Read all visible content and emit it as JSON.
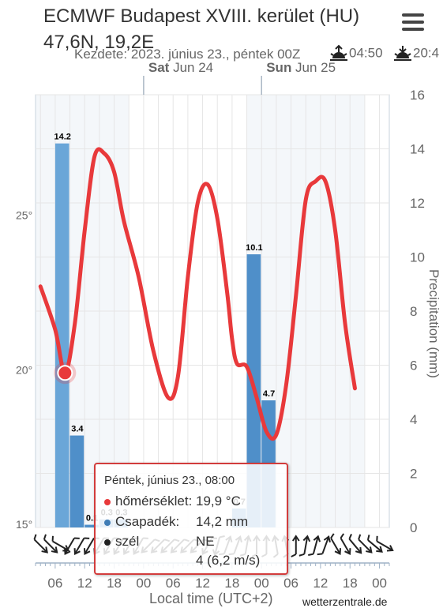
{
  "header": {
    "title_line1": "ECMWF Budapest XVIII. kerület (HU)",
    "title_line2": "47,6N, 19,2E",
    "subtitle": "Kezdete: 2023. június 23., péntek 00Z",
    "sunrise": "04:50",
    "sunset": "20:4",
    "menu_icon": "hamburger-menu-icon"
  },
  "chart_data": {
    "type": "bar+line",
    "day_labels": [
      {
        "bold": "Sat",
        "rest": " Jun 24"
      },
      {
        "bold": "Sun",
        "rest": " Jun 25"
      }
    ],
    "x_ticks": [
      "06",
      "12",
      "18",
      "00",
      "06",
      "12",
      "18",
      "00",
      "06",
      "12",
      "18",
      "00"
    ],
    "xlabel": "Local time (UTC+2)",
    "y_left": {
      "ticks": [
        "15°",
        "20°",
        "25°"
      ],
      "values": [
        15,
        20,
        25
      ],
      "range": [
        14.9,
        28.9
      ]
    },
    "y_right": {
      "label": "Precipitation (mm)",
      "ticks": [
        "0",
        "2",
        "4",
        "6",
        "8",
        "10",
        "12",
        "14",
        "16"
      ],
      "range": [
        0,
        16
      ]
    },
    "time_range_hours": [
      2,
      74
    ],
    "precipitation": [
      {
        "hour_start": 6,
        "hour_end": 9,
        "value": 14.2,
        "label": "14.2",
        "highlight": true
      },
      {
        "hour_start": 9,
        "hour_end": 12,
        "value": 3.4,
        "label": "3.4"
      },
      {
        "hour_start": 12,
        "hour_end": 15,
        "value": 0.1,
        "label": "0.1"
      },
      {
        "hour_start": 15,
        "hour_end": 18,
        "value": 0.3,
        "label": "0.3"
      },
      {
        "hour_start": 18,
        "hour_end": 21,
        "value": 0.3,
        "label": "0.3"
      },
      {
        "hour_start": 42,
        "hour_end": 45,
        "value": 0.7,
        "label": "0.7"
      },
      {
        "hour_start": 45,
        "hour_end": 48,
        "value": 10.1,
        "label": "10.1"
      },
      {
        "hour_start": 48,
        "hour_end": 51,
        "value": 4.7,
        "label": "4.7"
      }
    ],
    "temperature": {
      "name": "hőmérséklet",
      "points": [
        [
          3,
          22.7
        ],
        [
          6,
          21.3
        ],
        [
          8,
          19.9
        ],
        [
          10,
          21.5
        ],
        [
          12,
          24.5
        ],
        [
          14,
          26.9
        ],
        [
          16,
          27.0
        ],
        [
          18,
          26.4
        ],
        [
          20,
          24.8
        ],
        [
          23,
          23.0
        ],
        [
          26,
          20.6
        ],
        [
          29,
          19.1
        ],
        [
          31,
          19.8
        ],
        [
          33,
          23.0
        ],
        [
          35,
          25.4
        ],
        [
          37,
          26.0
        ],
        [
          39,
          24.9
        ],
        [
          41,
          22.5
        ],
        [
          42,
          21.0
        ],
        [
          43,
          20.2
        ],
        [
          45,
          20.1
        ],
        [
          47,
          19.1
        ],
        [
          49,
          18.0
        ],
        [
          51,
          17.9
        ],
        [
          53,
          19.5
        ],
        [
          55,
          22.4
        ],
        [
          57,
          25.5
        ],
        [
          59,
          26.1
        ],
        [
          61,
          26.1
        ],
        [
          63,
          24.5
        ],
        [
          65,
          21.5
        ],
        [
          67,
          19.4
        ]
      ]
    },
    "highlight_point": {
      "hour": 8,
      "temp": 19.9
    },
    "wind_arrows_deg": [
      315,
      315,
      300,
      30,
      30,
      30,
      30,
      30,
      30,
      30,
      30,
      45,
      45,
      45,
      45,
      45,
      45,
      30,
      15,
      200,
      200,
      190,
      180,
      180,
      170,
      170,
      180,
      190,
      195,
      200,
      330,
      330,
      320,
      315,
      310,
      300
    ],
    "colors": {
      "temperature": "#e8393b",
      "precip": "#4f8fc9",
      "precip_light": "#6aa6d8",
      "grid": "#e6e6e6",
      "band": "#f4f7fa"
    }
  },
  "tooltip": {
    "date": "Péntek, június 23., 08:00",
    "rows": [
      {
        "label": "hőmérséklet:",
        "value": "19,9 °C",
        "color": "#e8393b"
      },
      {
        "label": "Csapadék:",
        "value": "14,2 mm",
        "color": "#3f7cb5"
      },
      {
        "label": "szél",
        "value": "NE",
        "color": "#222222"
      },
      {
        "label": "",
        "value": "4 (6,2 m/s)",
        "color": ""
      }
    ]
  },
  "footer": {
    "axis_title": "Local time (UTC+2)",
    "credit": "wetterzentrale.de"
  }
}
